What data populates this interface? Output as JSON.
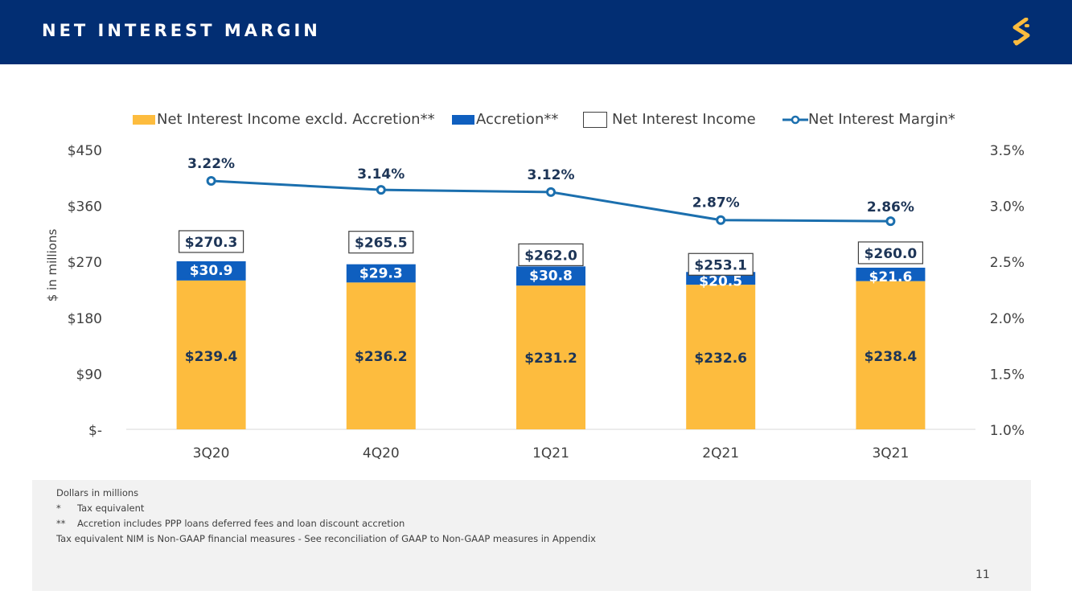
{
  "header": {
    "title": "NET INTEREST MARGIN",
    "logo_icon": "stylized-s-logo-icon"
  },
  "colors": {
    "navy": "#022e73",
    "gold": "#fdbc3e",
    "blue": "#0f5fbf",
    "line": "#1b6fae",
    "label_navy": "#1d3557"
  },
  "legend": {
    "items": [
      {
        "label": "Net Interest Income excld. Accretion**",
        "swatch": "gold"
      },
      {
        "label": "Accretion**",
        "swatch": "blue"
      },
      {
        "label": "Net Interest Income",
        "swatch": "outline"
      },
      {
        "label": "Net Interest Margin*",
        "swatch": "line"
      }
    ]
  },
  "chart_data": {
    "type": "bar",
    "stacked": true,
    "categories": [
      "3Q20",
      "4Q20",
      "1Q21",
      "2Q21",
      "3Q21"
    ],
    "series": [
      {
        "name": "Net Interest Income excld. Accretion**",
        "values": [
          239.4,
          236.2,
          231.2,
          232.6,
          238.4
        ],
        "labels": [
          "$239.4",
          "$236.2",
          "$231.2",
          "$232.6",
          "$238.4"
        ]
      },
      {
        "name": "Accretion**",
        "values": [
          30.9,
          29.3,
          30.8,
          20.5,
          21.6
        ],
        "labels": [
          "$30.9",
          "$29.3",
          "$30.8",
          "$20.5",
          "$21.6"
        ]
      },
      {
        "name": "Net Interest Income",
        "values": [
          270.3,
          265.5,
          262.0,
          253.1,
          260.0
        ],
        "labels": [
          "$270.3",
          "$265.5",
          "$262.0",
          "$253.1",
          "$260.0"
        ]
      },
      {
        "name": "Net Interest Margin*",
        "type": "line",
        "axis": "right",
        "values": [
          3.22,
          3.14,
          3.12,
          2.87,
          2.86
        ],
        "labels": [
          "3.22%",
          "3.14%",
          "3.12%",
          "2.87%",
          "2.86%"
        ]
      }
    ],
    "ylabel": "$ in millions",
    "ylim": [
      0,
      450
    ],
    "y_ticks": [
      0,
      90,
      180,
      270,
      360,
      450
    ],
    "y_tick_labels": [
      "$-",
      "$90",
      "$180",
      "$270",
      "$360",
      "$450"
    ],
    "y2lim": [
      1.0,
      3.5
    ],
    "y2_ticks": [
      1.0,
      1.5,
      2.0,
      2.5,
      3.0,
      3.5
    ],
    "y2_tick_labels": [
      "1.0%",
      "1.5%",
      "2.0%",
      "2.5%",
      "3.0%",
      "3.5%"
    ]
  },
  "notes": {
    "lines": [
      {
        "mark": "",
        "text": "Dollars in millions"
      },
      {
        "mark": "*",
        "text": "Tax equivalent"
      },
      {
        "mark": "**",
        "text": "Accretion includes PPP loans deferred fees and loan discount accretion"
      },
      {
        "mark": "",
        "text": "Tax equivalent NIM is Non-GAAP financial measures - See reconciliation of GAAP to Non-GAAP measures in Appendix"
      }
    ]
  },
  "page_number": "11"
}
